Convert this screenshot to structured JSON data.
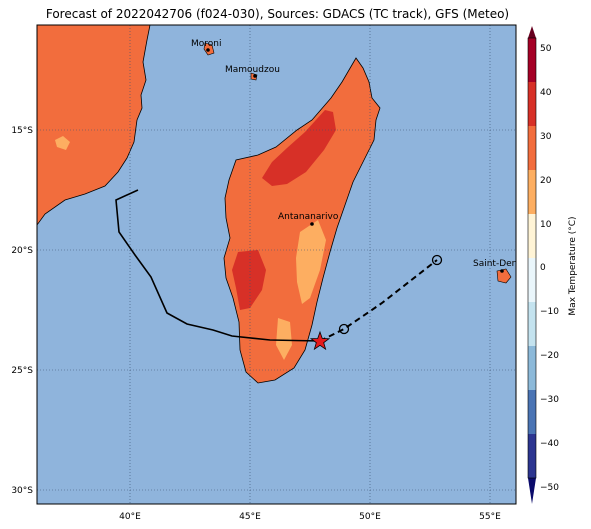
{
  "title": "Forecast of 2022042706 (f024-030), Sources: GDACS (TC track), GFS (Meteo)",
  "x_ticks": [
    "40°E",
    "45°E",
    "50°E",
    "55°E"
  ],
  "y_ticks": [
    "15°S",
    "20°S",
    "25°S",
    "30°S"
  ],
  "cities": [
    "Moroni",
    "Mamoudzou",
    "Antananarivo",
    "Saint-Denis"
  ],
  "colorbar": {
    "label": "Max Temperature (°C)",
    "ticks": [
      "50",
      "40",
      "30",
      "20",
      "10",
      "0",
      "−10",
      "−20",
      "−30",
      "−40",
      "−50"
    ]
  },
  "colors": {
    "ocean": "#8fb4dc",
    "land_20_30": "#f26d3d",
    "land_30_40": "#d73027",
    "land_10_20": "#fdae61",
    "track": "#000000",
    "current_position": "#e41a1c"
  }
}
